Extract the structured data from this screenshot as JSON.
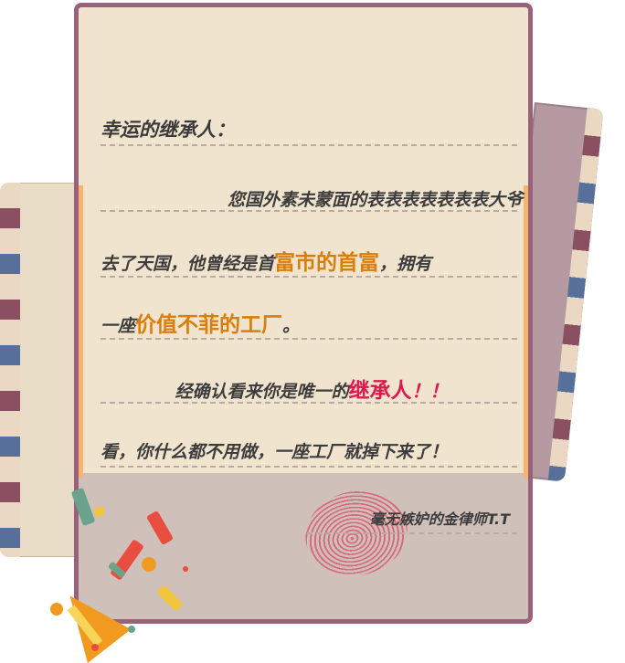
{
  "letter": {
    "salutation": "幸运的继承人：",
    "line1": "您国外素未蒙面的表表表表表表表大爷",
    "line2_a": "去了天国，他曾经是首",
    "line2_b": "富市的首富",
    "line2_c": "，拥有",
    "line3_a": "一座",
    "line3_b": "价值不菲的工厂",
    "line3_c": "。",
    "line4_a": "经确认看来你是唯一的",
    "line4_b": "继承人",
    "line4_c": "！！",
    "line5": "看，你什么都不用做，一座工厂就掉下来了！",
    "signature": "毫无嫉妒的金律师T.T"
  },
  "colors": {
    "frame": "#9a617a",
    "paper": "#f1e4cf",
    "accent_orange": "#d97e0a",
    "accent_red": "#e0164c"
  },
  "icons": {
    "fingerprint": "fingerprint-icon",
    "popper": "party-popper-icon"
  }
}
